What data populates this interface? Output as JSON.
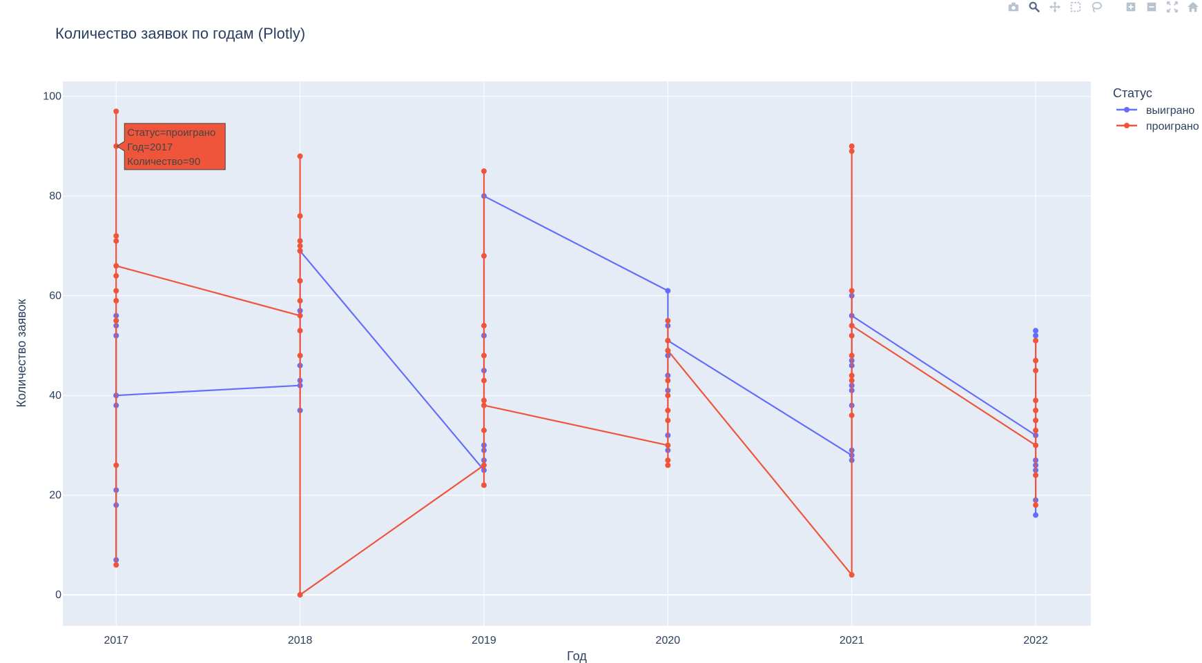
{
  "chart_data": {
    "type": "line",
    "title": "Количество заявок по годам (Plotly)",
    "xlabel": "Год",
    "ylabel": "Количество заявок",
    "x_ticks": [
      2017,
      2018,
      2019,
      2020,
      2021,
      2022
    ],
    "y_ticks": [
      0,
      20,
      40,
      60,
      80,
      100
    ],
    "xlim": [
      2016.71,
      2022.3
    ],
    "ylim": [
      -6.2,
      103
    ],
    "grid": true,
    "legend_title": "Статус",
    "legend_position": "top-right",
    "series": [
      {
        "name": "выиграно",
        "color": "#636efa",
        "points": [
          [
            2017,
            56
          ],
          [
            2017,
            54
          ],
          [
            2017,
            52
          ],
          [
            2017,
            40
          ],
          [
            2017,
            38
          ],
          [
            2017,
            21
          ],
          [
            2017,
            18
          ],
          [
            2017,
            7
          ],
          [
            2017,
            40
          ],
          [
            2018,
            42
          ],
          [
            2018,
            57
          ],
          [
            2018,
            46
          ],
          [
            2018,
            43
          ],
          [
            2018,
            37
          ],
          [
            2018,
            69
          ],
          [
            2019,
            25
          ],
          [
            2019,
            52
          ],
          [
            2019,
            45
          ],
          [
            2019,
            30
          ],
          [
            2019,
            29
          ],
          [
            2019,
            27
          ],
          [
            2019,
            80
          ],
          [
            2020,
            61
          ],
          [
            2020,
            54
          ],
          [
            2020,
            48
          ],
          [
            2020,
            44
          ],
          [
            2020,
            41
          ],
          [
            2020,
            32
          ],
          [
            2020,
            29
          ],
          [
            2020,
            51
          ],
          [
            2021,
            28
          ],
          [
            2021,
            60
          ],
          [
            2021,
            47
          ],
          [
            2021,
            46
          ],
          [
            2021,
            42
          ],
          [
            2021,
            41
          ],
          [
            2021,
            38
          ],
          [
            2021,
            29
          ],
          [
            2021,
            27
          ],
          [
            2021,
            56
          ],
          [
            2022,
            32
          ],
          [
            2022,
            53
          ],
          [
            2022,
            52
          ],
          [
            2022,
            27
          ],
          [
            2022,
            26
          ],
          [
            2022,
            25
          ],
          [
            2022,
            19
          ],
          [
            2022,
            16
          ]
        ]
      },
      {
        "name": "проиграно",
        "color": "#ef553b",
        "points": [
          [
            2017,
            97
          ],
          [
            2017,
            90
          ],
          [
            2017,
            72
          ],
          [
            2017,
            71
          ],
          [
            2017,
            64
          ],
          [
            2017,
            61
          ],
          [
            2017,
            59
          ],
          [
            2017,
            55
          ],
          [
            2017,
            26
          ],
          [
            2017,
            6
          ],
          [
            2017,
            66
          ],
          [
            2018,
            56
          ],
          [
            2018,
            88
          ],
          [
            2018,
            76
          ],
          [
            2018,
            71
          ],
          [
            2018,
            70
          ],
          [
            2018,
            69
          ],
          [
            2018,
            63
          ],
          [
            2018,
            59
          ],
          [
            2018,
            53
          ],
          [
            2018,
            48
          ],
          [
            2018,
            0
          ],
          [
            2019,
            26
          ],
          [
            2019,
            85
          ],
          [
            2019,
            68
          ],
          [
            2019,
            54
          ],
          [
            2019,
            48
          ],
          [
            2019,
            43
          ],
          [
            2019,
            39
          ],
          [
            2019,
            33
          ],
          [
            2019,
            22
          ],
          [
            2019,
            38
          ],
          [
            2020,
            30
          ],
          [
            2020,
            55
          ],
          [
            2020,
            51
          ],
          [
            2020,
            49
          ],
          [
            2020,
            43
          ],
          [
            2020,
            40
          ],
          [
            2020,
            37
          ],
          [
            2020,
            35
          ],
          [
            2020,
            27
          ],
          [
            2020,
            26
          ],
          [
            2020,
            49
          ],
          [
            2021,
            4
          ],
          [
            2021,
            90
          ],
          [
            2021,
            89
          ],
          [
            2021,
            61
          ],
          [
            2021,
            54
          ],
          [
            2021,
            52
          ],
          [
            2021,
            48
          ],
          [
            2021,
            44
          ],
          [
            2021,
            43
          ],
          [
            2021,
            36
          ],
          [
            2021,
            54
          ],
          [
            2022,
            30
          ],
          [
            2022,
            51
          ],
          [
            2022,
            47
          ],
          [
            2022,
            45
          ],
          [
            2022,
            39
          ],
          [
            2022,
            37
          ],
          [
            2022,
            35
          ],
          [
            2022,
            33
          ],
          [
            2022,
            24
          ],
          [
            2022,
            18
          ]
        ]
      }
    ],
    "hover_label": {
      "lines": [
        "Статус=проиграно",
        "Год=2017",
        "Количество=90"
      ],
      "x": 2017,
      "y": 90,
      "color": "#ef553b"
    }
  },
  "modebar": {
    "icons": [
      "camera-icon",
      "zoom-icon",
      "pan-icon",
      "box-select-icon",
      "lasso-icon",
      "zoom-in-icon",
      "zoom-out-icon",
      "autoscale-icon",
      "home-icon"
    ]
  }
}
